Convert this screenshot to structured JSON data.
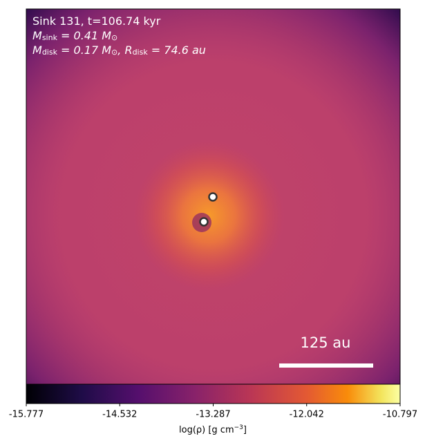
{
  "chart_data": {
    "type": "image",
    "annotation_lines": [
      [
        "Sink 131, t=106.74 kyr"
      ],
      [
        "M",
        "sink",
        " = 0.41 M",
        "⊙"
      ],
      [
        "M",
        "disk",
        " = 0.17 M",
        "⊙",
        ", R",
        "disk",
        " = 74.6 au"
      ]
    ],
    "scale_bar_label": "125 au",
    "colormap": "inferno",
    "clim": [
      -15.777,
      -10.797
    ],
    "cticks": [
      -15.777,
      -14.532,
      -13.287,
      -12.042,
      -10.797
    ],
    "colorbar_label": [
      "log(ρ) [g cm",
      "−3",
      "]"
    ]
  }
}
